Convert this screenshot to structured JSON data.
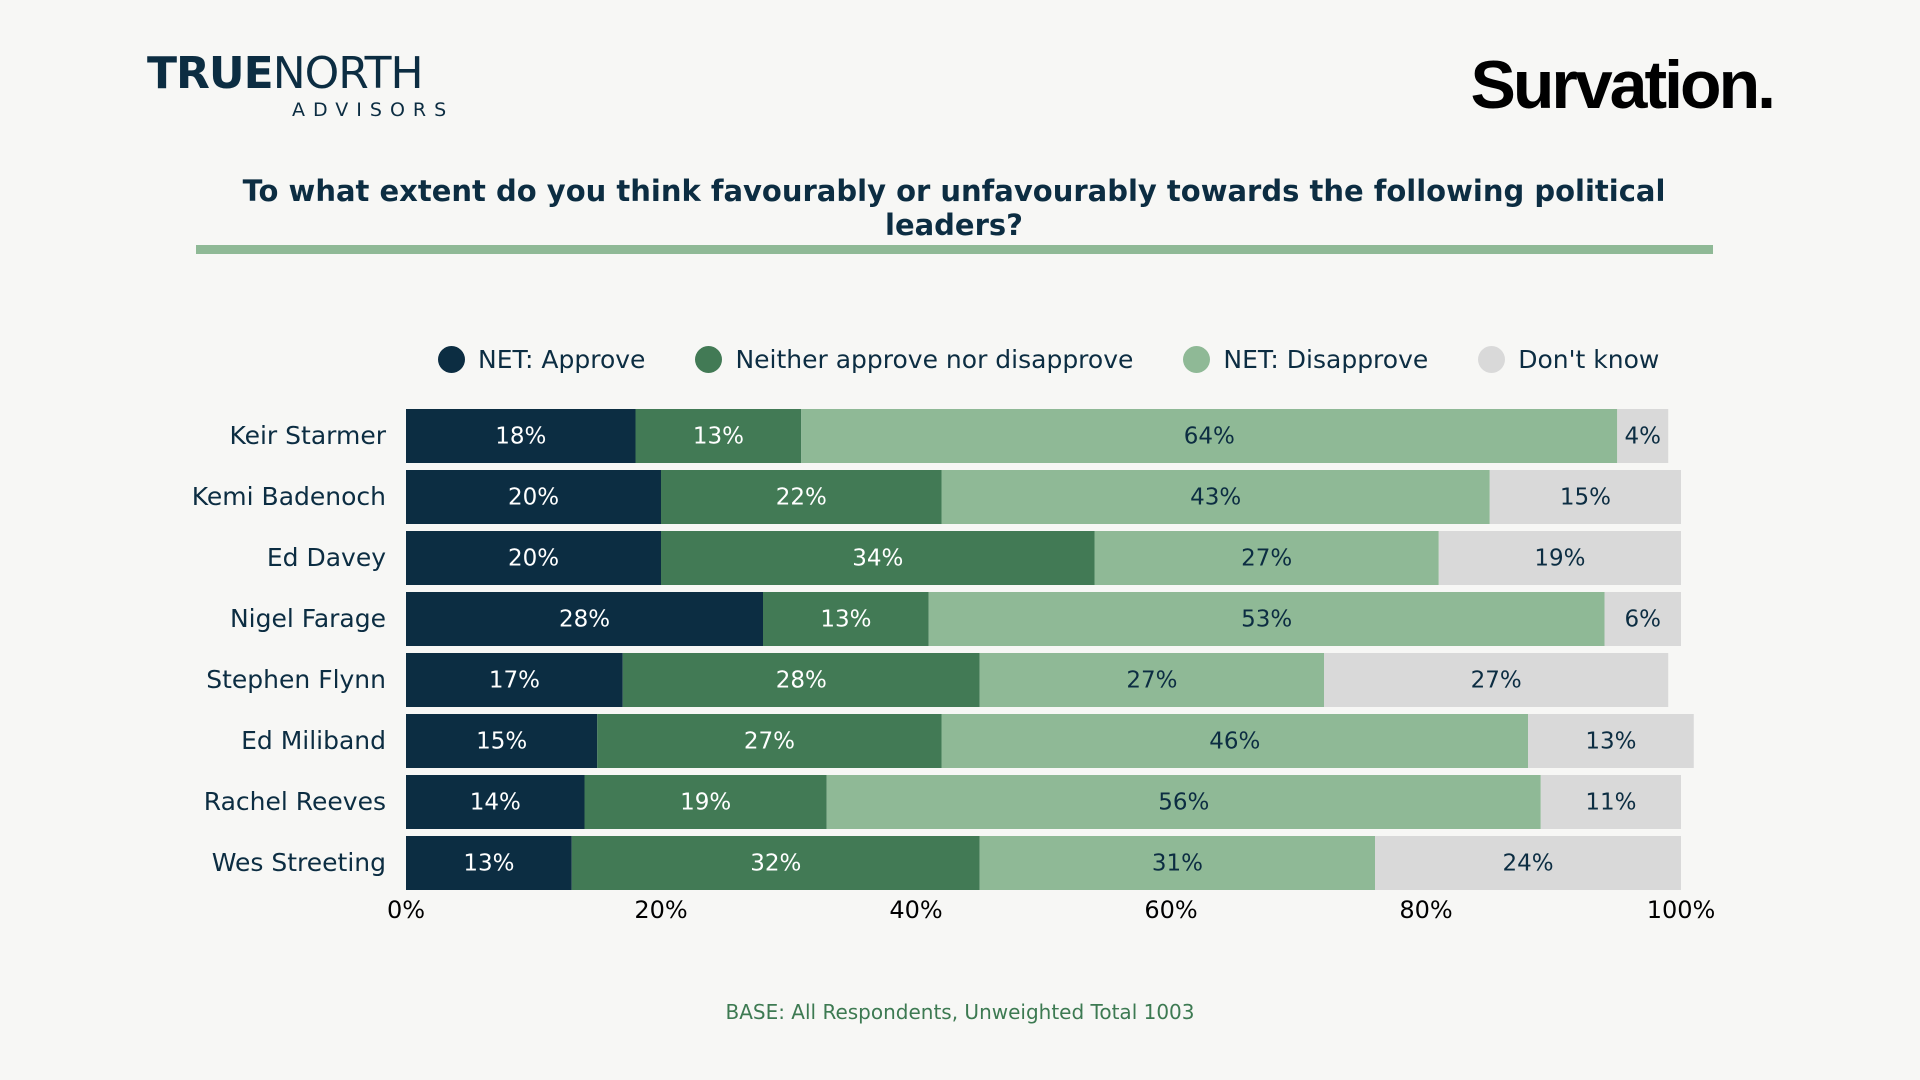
{
  "logos": {
    "left_true": "TRUE",
    "left_north": "NORTH",
    "left_advisors": "ADVISORS",
    "right": "Survation."
  },
  "chart_data": {
    "type": "bar",
    "orientation": "horizontal",
    "stacked": true,
    "title": "To what extent do you think favourably or unfavourably towards the following political leaders?",
    "categories": [
      "Keir Starmer",
      "Kemi Badenoch",
      "Ed Davey",
      "Nigel Farage",
      "Stephen Flynn",
      "Ed Miliband",
      "Rachel Reeves",
      "Wes Streeting"
    ],
    "series": [
      {
        "name": "NET: Approve",
        "color": "#0c2d42",
        "label_color": "#ffffff",
        "values": [
          18,
          20,
          20,
          28,
          17,
          15,
          14,
          13
        ]
      },
      {
        "name": "Neither approve nor disapprove",
        "color": "#427a55",
        "label_color": "#ffffff",
        "values": [
          13,
          22,
          34,
          13,
          28,
          27,
          19,
          32
        ]
      },
      {
        "name": "NET: Disapprove",
        "color": "#8fb996",
        "label_color": "#0c2d42",
        "values": [
          64,
          43,
          27,
          53,
          27,
          46,
          56,
          31
        ]
      },
      {
        "name": "Don't know",
        "color": "#d9d9d9",
        "label_color": "#0c2d42",
        "values": [
          4,
          15,
          19,
          6,
          27,
          13,
          11,
          24
        ]
      }
    ],
    "xlim": [
      0,
      100
    ],
    "xticks": [
      "0%",
      "20%",
      "40%",
      "60%",
      "80%",
      "100%"
    ],
    "value_suffix": "%",
    "grid": false,
    "legend_position": "top"
  },
  "footnote": "BASE: All Respondents, Unweighted Total 1003"
}
